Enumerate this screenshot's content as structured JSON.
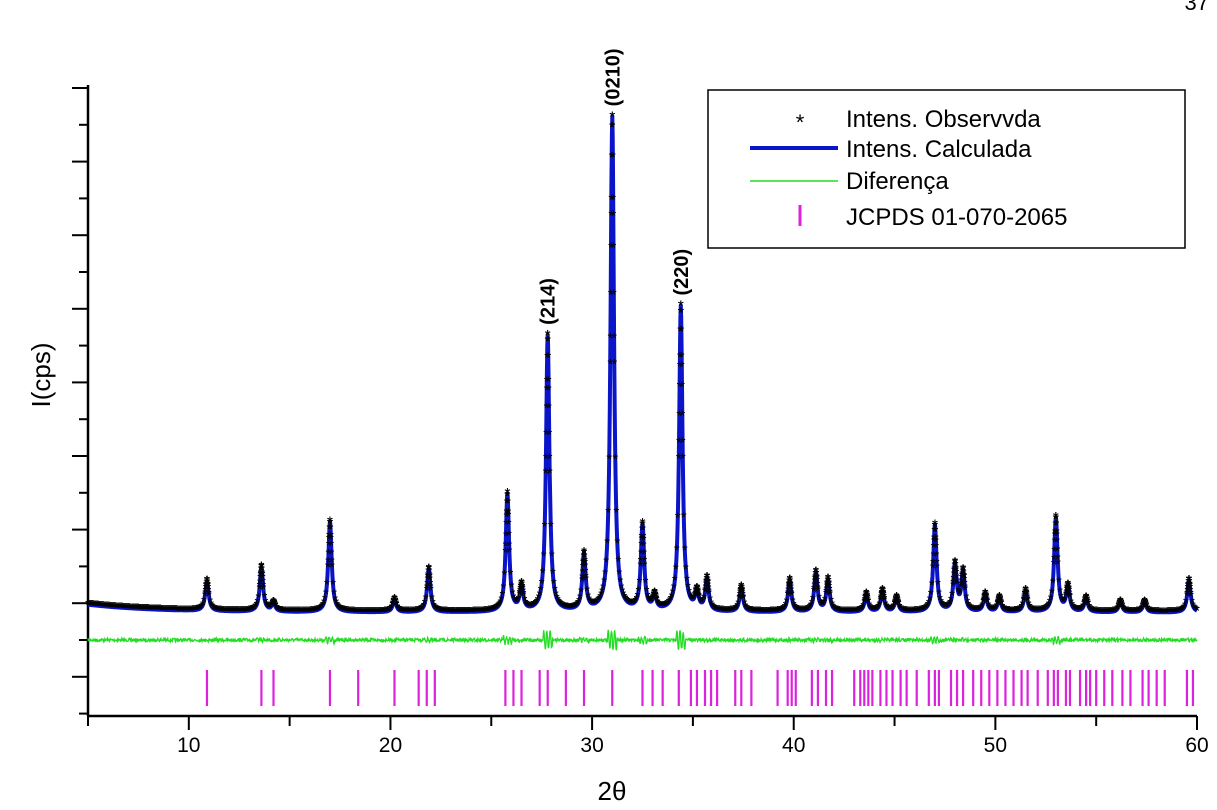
{
  "page_number": "37",
  "chart_data": {
    "type": "line",
    "title": "",
    "xlabel": "2θ",
    "ylabel": "I(cps)",
    "xlim": [
      5,
      60
    ],
    "ylim": [
      0,
      100
    ],
    "y_tick_labels_shown": false,
    "x_ticks": [
      10,
      20,
      30,
      40,
      50,
      60
    ],
    "x_tick_labels": [
      "10",
      "20",
      "30",
      "40",
      "50",
      "60"
    ],
    "grid": false,
    "legend_position": "top-right",
    "colors": {
      "observed": "#000000",
      "calculated": "#0a14c8",
      "difference": "#22dd22",
      "reference": "#dd22dd"
    },
    "series": [
      {
        "name": "Intens. Observvda",
        "marker": "asterisk",
        "peaks": [
          [
            10.9,
            4.2
          ],
          [
            13.6,
            6.2
          ],
          [
            14.2,
            1.2
          ],
          [
            17.0,
            12.5
          ],
          [
            20.2,
            1.8
          ],
          [
            21.9,
            6.0
          ],
          [
            25.8,
            16.2
          ],
          [
            26.5,
            3.5
          ],
          [
            27.8,
            38.0
          ],
          [
            29.6,
            7.8
          ],
          [
            31.0,
            68.0
          ],
          [
            32.5,
            11.8
          ],
          [
            33.1,
            2.0
          ],
          [
            34.4,
            42.0
          ],
          [
            35.2,
            2.5
          ],
          [
            35.7,
            4.5
          ],
          [
            37.4,
            3.5
          ],
          [
            39.8,
            4.5
          ],
          [
            41.1,
            5.5
          ],
          [
            41.7,
            4.5
          ],
          [
            43.6,
            2.5
          ],
          [
            44.4,
            3.0
          ],
          [
            45.1,
            2.0
          ],
          [
            47.0,
            12.0
          ],
          [
            48.0,
            6.5
          ],
          [
            48.4,
            5.5
          ],
          [
            49.5,
            2.5
          ],
          [
            50.2,
            2.0
          ],
          [
            51.5,
            3.0
          ],
          [
            53.0,
            13.0
          ],
          [
            53.6,
            3.5
          ],
          [
            54.5,
            2.0
          ],
          [
            56.2,
            1.5
          ],
          [
            57.4,
            1.5
          ],
          [
            59.6,
            4.5
          ]
        ]
      },
      {
        "name": "Intens. Calculada",
        "line_style": "solid-thick"
      },
      {
        "name": "Diferença",
        "line_style": "solid-thin"
      },
      {
        "name": "JCPDS 01-070-2065",
        "marker": "vertical-bar",
        "positions": [
          10.9,
          13.6,
          14.2,
          17.0,
          18.4,
          20.2,
          21.4,
          21.8,
          22.2,
          25.7,
          26.1,
          26.5,
          27.4,
          27.8,
          28.7,
          29.6,
          31.0,
          32.5,
          33.0,
          33.5,
          34.3,
          34.9,
          35.2,
          35.6,
          35.9,
          36.2,
          37.1,
          37.4,
          37.9,
          39.2,
          39.7,
          39.9,
          40.1,
          40.9,
          41.2,
          41.6,
          41.9,
          43.0,
          43.3,
          43.5,
          43.7,
          43.9,
          44.3,
          44.6,
          44.9,
          45.3,
          45.6,
          46.1,
          46.7,
          47.0,
          47.2,
          47.8,
          48.1,
          48.4,
          48.9,
          49.3,
          49.7,
          50.1,
          50.5,
          50.9,
          51.3,
          51.6,
          52.1,
          52.6,
          52.9,
          53.1,
          53.5,
          53.7,
          54.2,
          54.5,
          54.7,
          55.0,
          55.4,
          55.8,
          56.3,
          56.7,
          57.3,
          57.6,
          58.0,
          58.4,
          59.5,
          59.8
        ]
      }
    ],
    "annotations": [
      {
        "text": "(214)",
        "x": 27.8
      },
      {
        "text": "(0210)",
        "x": 31.0
      },
      {
        "text": "(220)",
        "x": 34.4
      }
    ]
  }
}
